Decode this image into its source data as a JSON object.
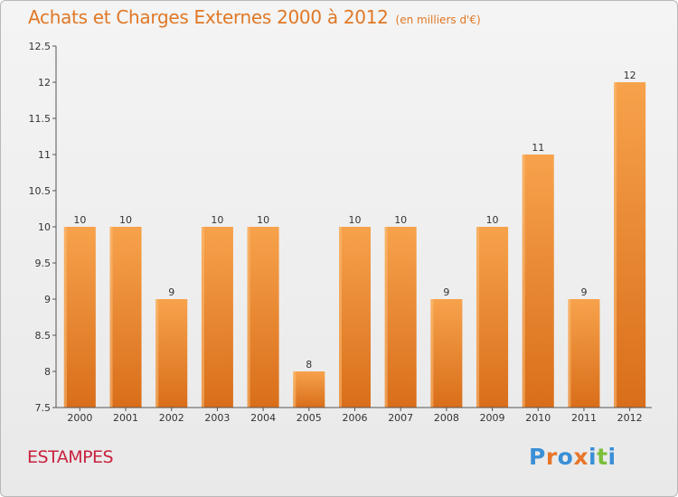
{
  "title": "Achats et Charges Externes 2000 à 2012",
  "subtitle": "(en milliers d'€)",
  "city": "ESTAMPES",
  "logo": {
    "text": "Proxiti",
    "letter_colors": [
      "#3a8fd6",
      "#e8762a",
      "#3a8fd6",
      "#e8762a",
      "#3a8fd6",
      "#7bbf3a",
      "#3a8fd6"
    ]
  },
  "colors": {
    "bar": "#e8842e",
    "bar_light": "#f7a24c",
    "bar_dark": "#d96e1a",
    "title": "#e07826",
    "city": "#c8223e"
  },
  "chart_data": {
    "type": "bar",
    "categories": [
      "2000",
      "2001",
      "2002",
      "2003",
      "2004",
      "2005",
      "2006",
      "2007",
      "2008",
      "2009",
      "2010",
      "2011",
      "2012"
    ],
    "values": [
      10,
      10,
      9,
      10,
      10,
      8,
      10,
      10,
      9,
      10,
      11,
      9,
      12
    ],
    "value_labels": [
      "10",
      "10",
      "9",
      "10",
      "10",
      "8",
      "10",
      "10",
      "9",
      "10",
      "11",
      "9",
      "12"
    ],
    "title": "Achats et Charges Externes 2000 à 2012",
    "xlabel": "",
    "ylabel": "",
    "ylim": [
      7.5,
      12.5
    ],
    "yticks": [
      7.5,
      8,
      8.5,
      9,
      9.5,
      10,
      10.5,
      11,
      11.5,
      12,
      12.5
    ],
    "ytick_labels": [
      "7.5",
      "8",
      "8.5",
      "9",
      "9.5",
      "10",
      "10.5",
      "11",
      "11.5",
      "12",
      "12.5"
    ],
    "grid": false,
    "legend": "none"
  }
}
